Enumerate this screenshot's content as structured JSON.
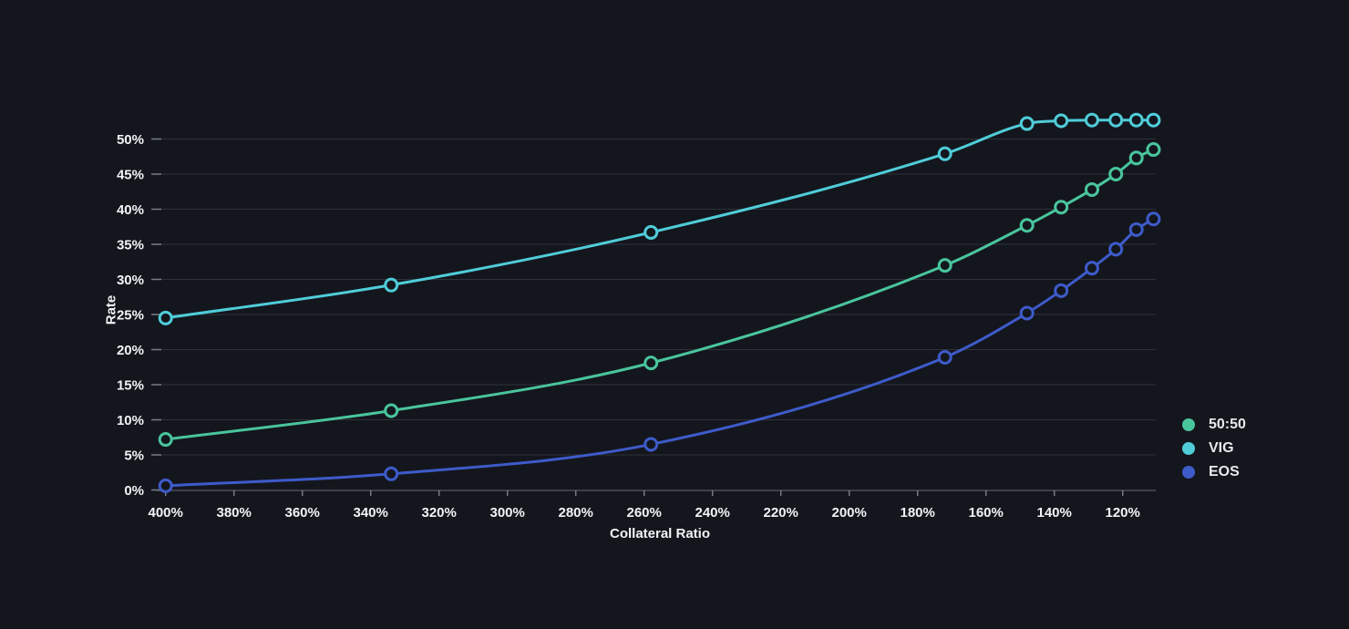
{
  "chart_data": {
    "type": "line",
    "title": "",
    "xlabel": "Collateral Ratio",
    "ylabel": "Rate",
    "x_axis_reversed": true,
    "x_tick_suffix": "%",
    "y_tick_suffix": "%",
    "x_ticks": [
      400,
      380,
      360,
      340,
      320,
      300,
      280,
      260,
      240,
      220,
      200,
      180,
      160,
      140,
      120
    ],
    "y_ticks": [
      0,
      5,
      10,
      15,
      20,
      25,
      30,
      35,
      40,
      45,
      50
    ],
    "xlim": [
      403,
      110
    ],
    "ylim": [
      0,
      55.5
    ],
    "grid": "horizontal",
    "x": [
      400,
      334,
      258,
      172,
      148,
      138,
      129,
      122,
      116,
      111
    ],
    "series": [
      {
        "name": "50:50",
        "color": "#49c59c",
        "values": [
          7.2,
          11.3,
          18.1,
          32.0,
          37.7,
          40.3,
          42.8,
          45.0,
          47.3,
          48.5
        ]
      },
      {
        "name": "VIG",
        "color": "#4fcdd9",
        "values": [
          24.5,
          29.2,
          36.7,
          47.9,
          52.2,
          52.6,
          52.7,
          52.7,
          52.7,
          52.7
        ]
      },
      {
        "name": "EOS",
        "color": "#3d5bc9",
        "values": [
          0.6,
          2.3,
          6.5,
          18.9,
          25.2,
          28.4,
          31.6,
          34.3,
          37.1,
          38.6
        ]
      }
    ],
    "legend": {
      "position": "right",
      "items": [
        "50:50",
        "VIG",
        "EOS"
      ]
    }
  },
  "colors": {
    "background": "#14161e",
    "gridline": "#2f323a",
    "axis_line": "#4a4f5a",
    "tick_line": "#767b85",
    "tick_text": "#f2f3f5",
    "legend_text": "#e8e9eb"
  }
}
